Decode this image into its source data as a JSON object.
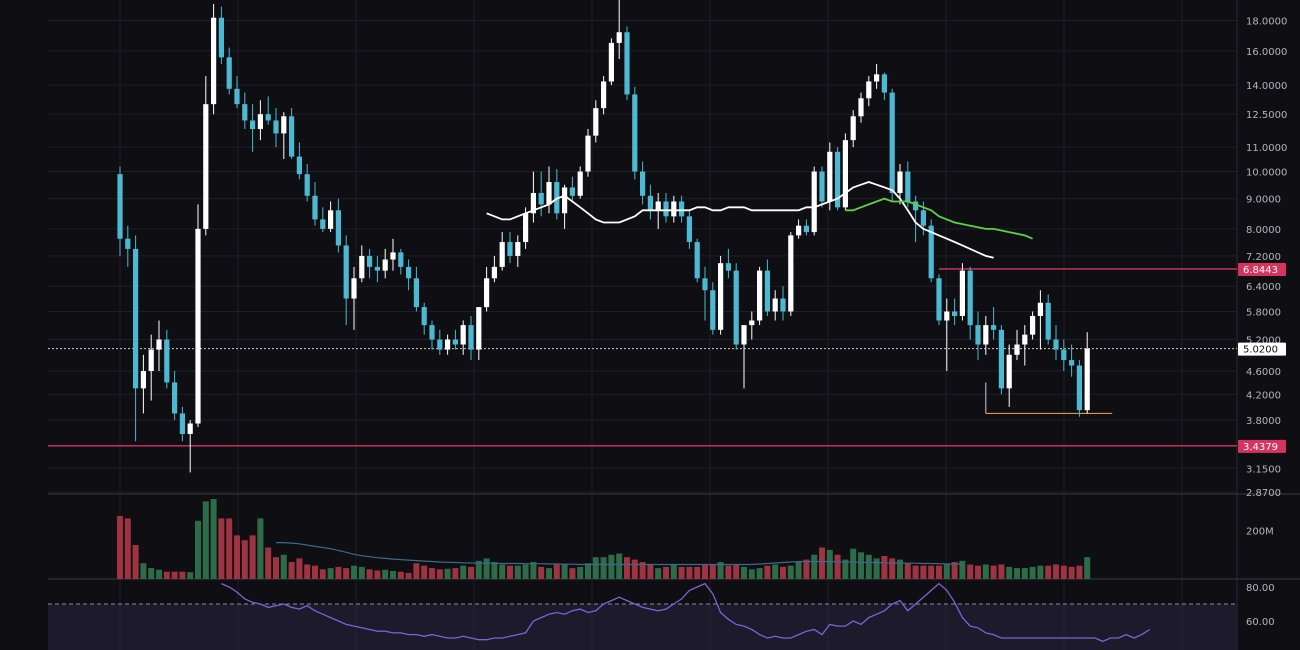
{
  "toolbar": {
    "tools": [
      {
        "name": "trendline-tool-icon"
      },
      {
        "name": "fib-retracement-tool-icon"
      },
      {
        "name": "brush-tool-icon"
      },
      {
        "name": "text-tool-icon"
      },
      {
        "name": "pattern-tool-icon"
      },
      {
        "name": "projection-tool-icon"
      },
      {
        "name": "favorites-heart-icon"
      },
      {
        "name": "measure-ruler-icon"
      },
      {
        "name": "zoom-in-icon"
      },
      {
        "name": "magnet-icon"
      },
      {
        "name": "lock-drawings-pencil-icon"
      },
      {
        "name": "lock-icon"
      },
      {
        "name": "eye-icon"
      },
      {
        "name": "trash-icon"
      }
    ]
  },
  "colors": {
    "background": "#0f0f13",
    "up_candle": "#ffffff",
    "down_candle": "#4db8d1",
    "ma_white": "#ffffff",
    "ma_green": "#5fd046",
    "level_line": "#d6345f",
    "orange_line": "#d69a3a",
    "vol_up": "#2e6b48",
    "vol_down": "#9e3341",
    "vol_ma": "#3a6b8c",
    "rsi_line": "#7a63d6",
    "rsi_band": "#2a2440",
    "grid": "#1d1e26"
  },
  "chart_data": {
    "type": "candlestick",
    "price_scale": "log",
    "price_axis_labels": [
      "18.0000",
      "16.0000",
      "14.0000",
      "12.5000",
      "11.0000",
      "10.0000",
      "9.0000",
      "8.0000",
      "7.2000",
      "6.4000",
      "5.8000",
      "5.2000",
      "4.6000",
      "4.2000",
      "3.8000",
      "3.1500",
      "2.8700"
    ],
    "last_price_label": "5.0200",
    "level_labels": [
      "6.8443",
      "3.4379"
    ],
    "levels": {
      "upper": 6.8443,
      "lower": 3.4379,
      "last": 5.02,
      "support_short": 3.9
    },
    "ylim": [
      2.85,
      19.5
    ],
    "candles": [
      [
        9.9,
        10.2,
        7.2,
        7.7
      ],
      [
        7.7,
        8.1,
        6.9,
        7.4
      ],
      [
        7.4,
        7.8,
        3.5,
        4.3
      ],
      [
        4.3,
        4.9,
        3.9,
        4.6
      ],
      [
        4.6,
        5.3,
        4.1,
        5.0
      ],
      [
        5.0,
        5.6,
        4.6,
        5.2
      ],
      [
        5.2,
        5.4,
        4.3,
        4.4
      ],
      [
        4.4,
        4.6,
        3.8,
        3.9
      ],
      [
        3.9,
        4.0,
        3.5,
        3.6
      ],
      [
        3.6,
        3.8,
        3.1,
        3.75
      ],
      [
        3.75,
        8.8,
        3.7,
        8.0
      ],
      [
        8.0,
        14.5,
        7.8,
        13.0
      ],
      [
        13.0,
        19.2,
        12.5,
        18.2
      ],
      [
        18.2,
        19.0,
        15.2,
        15.6
      ],
      [
        15.6,
        16.2,
        13.5,
        13.8
      ],
      [
        13.8,
        14.5,
        12.8,
        13.0
      ],
      [
        13.0,
        13.6,
        11.8,
        12.2
      ],
      [
        12.2,
        13.0,
        10.8,
        11.8
      ],
      [
        11.8,
        13.2,
        11.3,
        12.5
      ],
      [
        12.5,
        13.4,
        12.0,
        12.2
      ],
      [
        12.2,
        12.8,
        11.0,
        11.6
      ],
      [
        11.6,
        12.6,
        10.5,
        12.4
      ],
      [
        12.4,
        12.8,
        10.5,
        10.6
      ],
      [
        10.6,
        11.2,
        9.7,
        9.9
      ],
      [
        9.9,
        10.3,
        8.9,
        9.1
      ],
      [
        9.1,
        9.6,
        8.1,
        8.3
      ],
      [
        8.3,
        8.7,
        7.9,
        8.0
      ],
      [
        8.0,
        8.9,
        7.9,
        8.6
      ],
      [
        8.6,
        9.0,
        7.3,
        7.5
      ],
      [
        7.5,
        7.8,
        5.5,
        6.1
      ],
      [
        6.1,
        6.9,
        5.4,
        6.6
      ],
      [
        6.6,
        7.5,
        6.5,
        7.2
      ],
      [
        7.2,
        7.4,
        6.6,
        6.9
      ],
      [
        6.9,
        7.2,
        6.5,
        6.8
      ],
      [
        6.8,
        7.4,
        6.6,
        7.1
      ],
      [
        7.1,
        7.7,
        6.8,
        7.3
      ],
      [
        7.3,
        7.4,
        6.7,
        6.9
      ],
      [
        6.9,
        7.1,
        6.3,
        6.6
      ],
      [
        6.6,
        6.9,
        5.8,
        5.9
      ],
      [
        5.9,
        6.0,
        5.3,
        5.5
      ],
      [
        5.5,
        5.6,
        5.0,
        5.2
      ],
      [
        5.2,
        5.4,
        4.9,
        5.0
      ],
      [
        5.0,
        5.3,
        4.9,
        5.2
      ],
      [
        5.2,
        5.4,
        5.0,
        5.1
      ],
      [
        5.1,
        5.6,
        4.9,
        5.5
      ],
      [
        5.5,
        5.7,
        4.8,
        5.0
      ],
      [
        5.0,
        5.9,
        4.8,
        5.9
      ],
      [
        5.9,
        6.9,
        5.8,
        6.6
      ],
      [
        6.6,
        7.2,
        6.5,
        6.9
      ],
      [
        6.9,
        7.9,
        6.8,
        7.6
      ],
      [
        7.6,
        7.9,
        7.0,
        7.2
      ],
      [
        7.2,
        7.8,
        6.9,
        7.6
      ],
      [
        7.6,
        8.7,
        7.4,
        8.5
      ],
      [
        8.5,
        10.0,
        8.2,
        9.2
      ],
      [
        9.2,
        10.0,
        8.4,
        8.8
      ],
      [
        8.8,
        10.2,
        8.5,
        9.6
      ],
      [
        9.6,
        10.1,
        8.3,
        8.5
      ],
      [
        8.5,
        9.5,
        8.0,
        9.4
      ],
      [
        9.4,
        9.8,
        8.9,
        9.1
      ],
      [
        9.1,
        10.2,
        9.0,
        10.0
      ],
      [
        10.0,
        11.8,
        9.8,
        11.5
      ],
      [
        11.5,
        13.2,
        11.2,
        12.8
      ],
      [
        12.8,
        14.5,
        12.5,
        14.2
      ],
      [
        14.2,
        16.8,
        14.0,
        16.5
      ],
      [
        16.5,
        19.5,
        15.5,
        17.2
      ],
      [
        17.2,
        17.6,
        13.2,
        13.5
      ],
      [
        13.5,
        13.9,
        9.7,
        10.0
      ],
      [
        10.0,
        10.4,
        8.8,
        9.1
      ],
      [
        9.1,
        9.5,
        8.3,
        8.6
      ],
      [
        8.6,
        9.2,
        8.0,
        8.9
      ],
      [
        8.9,
        9.2,
        8.2,
        8.4
      ],
      [
        8.4,
        9.1,
        8.2,
        8.9
      ],
      [
        8.9,
        9.1,
        8.2,
        8.4
      ],
      [
        8.4,
        8.6,
        7.4,
        7.6
      ],
      [
        7.6,
        7.7,
        6.5,
        6.6
      ],
      [
        6.6,
        6.9,
        5.6,
        6.3
      ],
      [
        6.3,
        6.5,
        5.3,
        5.4
      ],
      [
        5.4,
        7.2,
        5.3,
        7.0
      ],
      [
        7.0,
        7.4,
        6.6,
        6.8
      ],
      [
        6.8,
        7.0,
        5.0,
        5.1
      ],
      [
        5.1,
        5.5,
        4.3,
        5.5
      ],
      [
        5.5,
        5.8,
        5.2,
        5.6
      ],
      [
        5.6,
        6.9,
        5.5,
        6.8
      ],
      [
        6.8,
        7.1,
        5.7,
        5.8
      ],
      [
        5.8,
        6.3,
        5.6,
        6.1
      ],
      [
        6.1,
        6.4,
        5.6,
        5.8
      ],
      [
        5.8,
        7.9,
        5.7,
        7.8
      ],
      [
        7.8,
        8.3,
        7.7,
        8.1
      ],
      [
        8.1,
        8.3,
        7.8,
        7.9
      ],
      [
        7.9,
        10.2,
        7.8,
        10.0
      ],
      [
        10.0,
        10.2,
        8.7,
        8.9
      ],
      [
        8.9,
        11.2,
        8.6,
        10.8
      ],
      [
        10.8,
        11.0,
        8.6,
        8.7
      ],
      [
        8.7,
        11.6,
        8.6,
        11.3
      ],
      [
        11.3,
        12.7,
        11.0,
        12.4
      ],
      [
        12.4,
        13.6,
        12.1,
        13.3
      ],
      [
        13.3,
        14.5,
        12.9,
        14.2
      ],
      [
        14.2,
        15.2,
        13.8,
        14.6
      ],
      [
        14.6,
        14.7,
        13.2,
        13.6
      ],
      [
        13.6,
        13.8,
        8.9,
        9.2
      ],
      [
        9.2,
        10.3,
        8.8,
        10.0
      ],
      [
        10.0,
        10.4,
        8.7,
        8.9
      ],
      [
        8.9,
        9.1,
        7.6,
        8.6
      ],
      [
        8.6,
        8.9,
        7.8,
        8.1
      ],
      [
        8.1,
        8.3,
        6.5,
        6.6
      ],
      [
        6.6,
        6.7,
        5.5,
        5.6
      ],
      [
        5.6,
        6.1,
        4.6,
        5.8
      ],
      [
        5.8,
        6.1,
        5.5,
        5.7
      ],
      [
        5.7,
        7.0,
        5.6,
        6.8
      ],
      [
        6.8,
        6.9,
        5.2,
        5.5
      ],
      [
        5.5,
        5.8,
        4.8,
        5.1
      ],
      [
        5.1,
        5.7,
        4.9,
        5.5
      ],
      [
        5.5,
        5.9,
        5.2,
        5.4
      ],
      [
        5.4,
        5.5,
        4.2,
        4.3
      ],
      [
        4.3,
        5.1,
        4.0,
        4.9
      ],
      [
        4.9,
        5.4,
        4.8,
        5.1
      ],
      [
        5.1,
        5.5,
        4.7,
        5.3
      ],
      [
        5.3,
        5.8,
        5.2,
        5.7
      ],
      [
        5.7,
        6.3,
        5.0,
        6.0
      ],
      [
        6.0,
        6.2,
        5.1,
        5.2
      ],
      [
        5.2,
        5.5,
        4.8,
        5.0
      ],
      [
        5.0,
        5.2,
        4.6,
        4.8
      ],
      [
        4.8,
        5.1,
        4.5,
        4.7
      ],
      [
        4.7,
        4.8,
        3.85,
        3.95
      ],
      [
        3.95,
        5.35,
        3.9,
        5.02
      ]
    ],
    "ma_white": {
      "start": 47,
      "values": [
        8.5,
        8.4,
        8.3,
        8.3,
        8.4,
        8.5,
        8.6,
        8.7,
        8.8,
        9.0,
        9.1,
        8.9,
        8.7,
        8.5,
        8.3,
        8.2,
        8.2,
        8.2,
        8.3,
        8.4,
        8.6,
        8.6,
        8.6,
        8.6,
        8.6,
        8.6,
        8.6,
        8.7,
        8.7,
        8.6,
        8.6,
        8.7,
        8.7,
        8.7,
        8.6,
        8.6,
        8.6,
        8.6,
        8.6,
        8.6,
        8.6,
        8.7,
        8.7,
        8.8,
        8.9,
        9.0,
        9.2,
        9.4,
        9.5,
        9.6,
        9.5,
        9.4,
        9.3,
        9.0,
        8.6,
        8.2,
        8.0,
        7.9,
        7.8,
        7.7,
        7.6,
        7.5,
        7.4,
        7.3,
        7.2,
        7.15
      ]
    },
    "ma_green": {
      "start": 93,
      "values": [
        8.6,
        8.6,
        8.7,
        8.8,
        8.9,
        9.0,
        8.9,
        8.9,
        8.9,
        8.8,
        8.7,
        8.6,
        8.4,
        8.3,
        8.2,
        8.15,
        8.1,
        8.05,
        8.0,
        8.0,
        7.95,
        7.9,
        7.85,
        7.8,
        7.7
      ]
    },
    "volume": {
      "axis_label": "200M",
      "values": [
        260,
        250,
        140,
        65,
        45,
        38,
        30,
        30,
        30,
        28,
        240,
        320,
        330,
        250,
        250,
        180,
        160,
        180,
        250,
        130,
        90,
        100,
        70,
        85,
        60,
        55,
        40,
        45,
        50,
        45,
        55,
        50,
        40,
        35,
        38,
        33,
        30,
        25,
        65,
        55,
        45,
        40,
        42,
        45,
        55,
        50,
        75,
        85,
        70,
        60,
        55,
        55,
        60,
        70,
        50,
        45,
        60,
        60,
        45,
        50,
        65,
        90,
        90,
        100,
        105,
        90,
        80,
        70,
        60,
        45,
        50,
        60,
        50,
        50,
        50,
        60,
        60,
        70,
        55,
        60,
        50,
        40,
        45,
        55,
        60,
        50,
        55,
        70,
        80,
        100,
        130,
        120,
        100,
        80,
        125,
        110,
        100,
        85,
        95,
        85,
        80,
        65,
        55,
        55,
        55,
        55,
        60,
        70,
        75,
        60,
        55,
        60,
        55,
        60,
        50,
        45,
        45,
        50,
        55,
        55,
        60,
        55,
        50,
        55,
        90
      ],
      "ma": {
        "start": 20,
        "values": [
          150,
          150,
          148,
          145,
          140,
          135,
          130,
          125,
          118,
          110,
          102,
          96,
          92,
          88,
          85,
          82,
          80,
          78,
          76,
          74,
          72,
          70,
          69,
          68,
          67,
          66,
          65,
          65,
          65,
          64,
          64,
          64,
          63,
          63,
          63,
          62,
          62,
          61,
          61,
          60,
          60,
          60,
          60,
          60,
          60,
          60,
          60,
          60,
          60,
          60,
          60,
          60,
          60,
          60,
          60,
          60,
          60,
          60,
          60,
          60,
          60,
          60,
          62,
          64,
          66,
          68,
          70,
          72,
          72,
          72,
          72,
          72,
          71,
          70,
          70,
          69,
          68,
          68,
          67,
          66,
          66,
          65,
          65,
          64,
          64,
          63,
          62,
          62,
          62
        ]
      }
    },
    "rsi": {
      "axis_labels": [
        "80.00",
        "60.00"
      ],
      "start": 13,
      "values": [
        82,
        80,
        77,
        73,
        71,
        70,
        68,
        69,
        70,
        68,
        67,
        69,
        66,
        64,
        62,
        60,
        58,
        57,
        56,
        55,
        54,
        54,
        53,
        53,
        52,
        52,
        51,
        52,
        51,
        50,
        50,
        51,
        50,
        49,
        49,
        50,
        50,
        51,
        52,
        53,
        60,
        62,
        64,
        65,
        64,
        66,
        67,
        65,
        66,
        70,
        72,
        74,
        72,
        70,
        68,
        67,
        66,
        67,
        70,
        73,
        78,
        80,
        82,
        76,
        65,
        61,
        58,
        57,
        55,
        52,
        50,
        51,
        50,
        50,
        52,
        54,
        55,
        52,
        58,
        57,
        57,
        60,
        58,
        62,
        64,
        66,
        70,
        72,
        66,
        70,
        74,
        78,
        82,
        78,
        71,
        62,
        57,
        56,
        53,
        52,
        50,
        50,
        50,
        50,
        50,
        50,
        50,
        50,
        50,
        50,
        50,
        50,
        50,
        48,
        50,
        50,
        52,
        50,
        52,
        55
      ]
    }
  }
}
